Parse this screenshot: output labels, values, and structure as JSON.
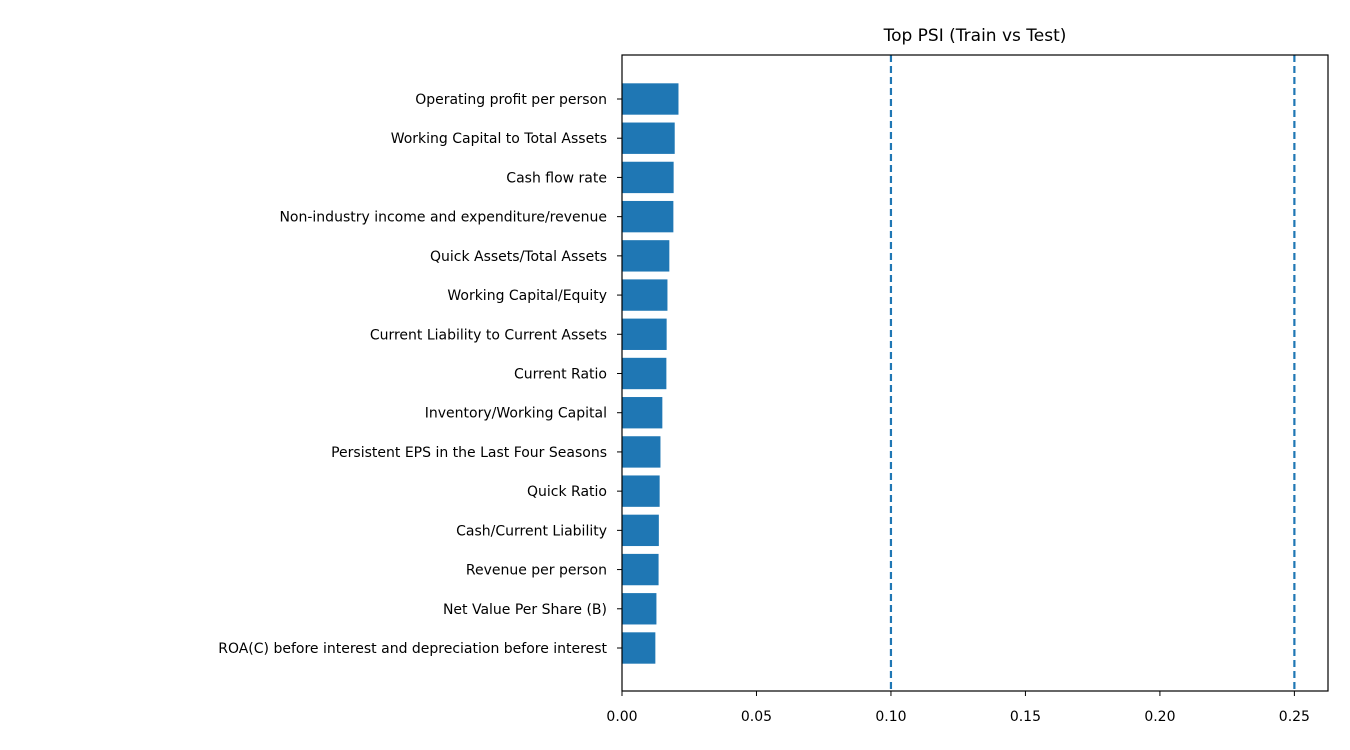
{
  "chart_data": {
    "type": "bar",
    "orientation": "horizontal",
    "title": "Top PSI (Train vs Test)",
    "xlabel": "",
    "ylabel": "",
    "categories": [
      "Operating profit per person",
      "Working Capital to Total Assets",
      "Cash flow rate",
      "Non-industry income and expenditure/revenue",
      "Quick Assets/Total Assets",
      "Working Capital/Equity",
      "Current Liability to Current Assets",
      "Current Ratio",
      "Inventory/Working Capital",
      "Persistent EPS in the Last Four Seasons",
      "Quick Ratio",
      "Cash/Current Liability",
      "Revenue per person",
      "Net Value Per Share (B)",
      "ROA(C) before interest and depreciation before interest"
    ],
    "values": [
      0.021,
      0.0196,
      0.0192,
      0.0191,
      0.0176,
      0.0169,
      0.0166,
      0.0165,
      0.015,
      0.0143,
      0.014,
      0.0137,
      0.0136,
      0.0128,
      0.0124
    ],
    "xlim": [
      0,
      0.2625
    ],
    "xticks": [
      "0.00",
      "0.05",
      "0.10",
      "0.15",
      "0.20",
      "0.25"
    ],
    "xtick_values": [
      0,
      0.05,
      0.1,
      0.15,
      0.2,
      0.25
    ],
    "reference_lines": [
      0.1,
      0.25
    ],
    "grid": false,
    "bar_color": "#1f77b4",
    "reference_line_color": "#1f77b4"
  }
}
